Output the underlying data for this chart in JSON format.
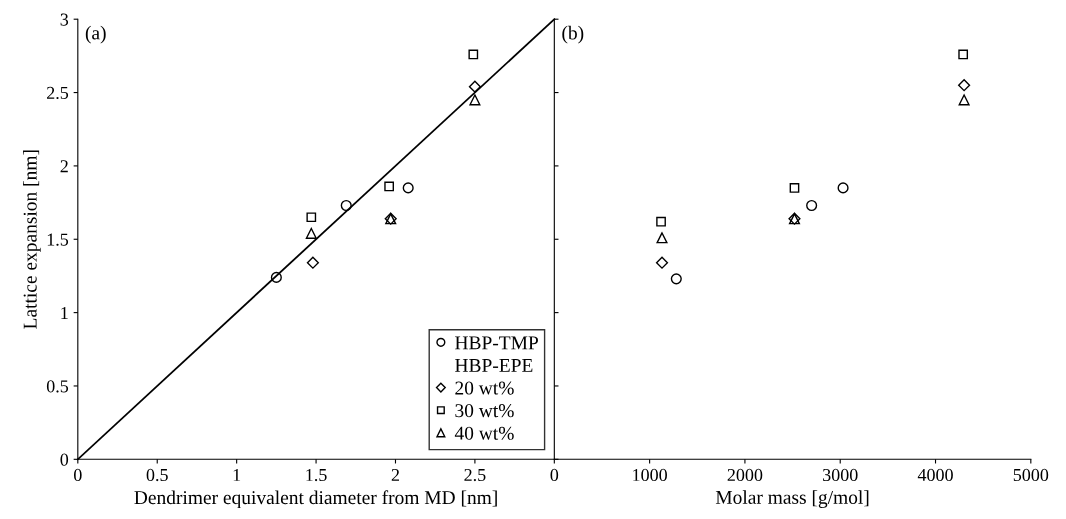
{
  "chart_data": [
    {
      "type": "scatter",
      "title": "(a)",
      "xlabel": "Dendrimer equivalent diameter from MD [nm]",
      "ylabel": "Lattice expansion [nm]",
      "xlim": [
        0,
        3
      ],
      "xticks": [
        0,
        0.5,
        1,
        1.5,
        2,
        2.5
      ],
      "ylim": [
        0,
        3
      ],
      "yticks": [
        0,
        0.5,
        1,
        1.5,
        2,
        2.5,
        3
      ],
      "legend": "bottom right",
      "annotations": [
        "HBP-EPE"
      ],
      "series": [
        {
          "name": "HBP-TMP",
          "color": "#000000",
          "marker": "circle",
          "x": [
            1.25,
            1.69,
            2.08
          ],
          "values": [
            1.24,
            1.73,
            1.85
          ]
        },
        {
          "name": "20 wt%",
          "color": "#000000",
          "marker": "diamond",
          "x": [
            1.48,
            1.97,
            2.5
          ],
          "values": [
            1.34,
            1.64,
            2.54
          ]
        },
        {
          "name": "30 wt%",
          "color": "#000000",
          "marker": "square",
          "x": [
            1.47,
            1.96,
            2.49
          ],
          "values": [
            1.65,
            1.86,
            2.76
          ]
        },
        {
          "name": "40 wt%",
          "color": "#000000",
          "marker": "triangle",
          "x": [
            1.47,
            1.97,
            2.5
          ],
          "values": [
            1.54,
            1.64,
            2.45
          ]
        },
        {
          "type": "line",
          "color": "#000000",
          "x": [
            0,
            3
          ],
          "values": [
            0,
            3
          ]
        }
      ]
    },
    {
      "type": "scatter",
      "title": "(b)",
      "xlabel": "Molar mass [g/mol]",
      "xlim": [
        0,
        5000
      ],
      "xticks": [
        0,
        1000,
        2000,
        3000,
        4000,
        5000
      ],
      "ylim": [
        0,
        3
      ],
      "yticks": [
        0,
        0.5,
        1,
        1.5,
        2,
        2.5,
        3
      ],
      "tick_labels": "x",
      "series": [
        {
          "color": "#000000",
          "marker": "circle",
          "x": [
            1280,
            2700,
            3030
          ],
          "values": [
            1.23,
            1.73,
            1.85
          ]
        },
        {
          "color": "#000000",
          "marker": "diamond",
          "x": [
            1130,
            2520,
            4300
          ],
          "values": [
            1.34,
            1.64,
            2.55
          ]
        },
        {
          "color": "#000000",
          "marker": "square",
          "x": [
            1120,
            2520,
            4290
          ],
          "values": [
            1.62,
            1.85,
            2.76
          ]
        },
        {
          "color": "#000000",
          "marker": "triangle",
          "x": [
            1130,
            2520,
            4300
          ],
          "values": [
            1.51,
            1.64,
            2.45
          ]
        }
      ]
    }
  ]
}
